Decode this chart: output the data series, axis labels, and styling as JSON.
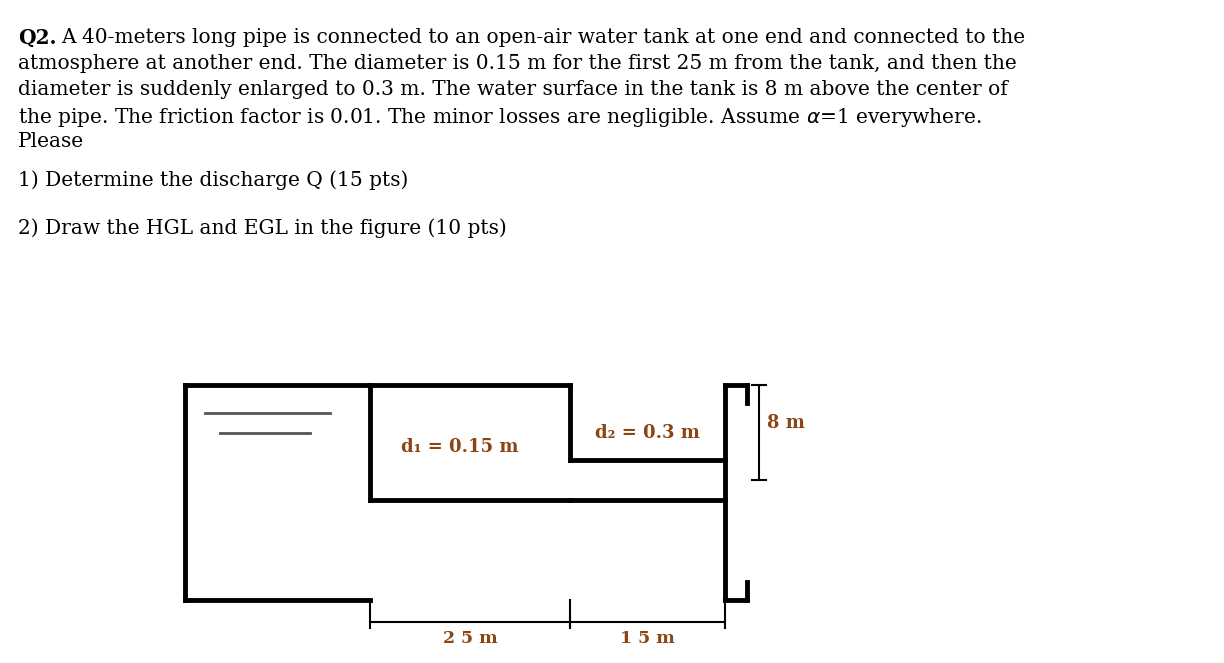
{
  "line1": "Q2. A 40-meters long pipe is connected to an open-air water tank at one end and connected to the",
  "line2": "atmosphere at another end. The diameter is 0.15 m for the first 25 m from the tank, and then the",
  "line3": "diameter is suddenly enlarged to 0.3 m. The water surface in the tank is 8 m above the center of",
  "line4": "the pipe. The friction factor is 0.01. The minor losses are negligible. Assume α=1 everywhere.",
  "line5": "Please",
  "item1": "1) Determine the discharge Q (15 pts)",
  "item2": "2) Draw the HGL and EGL in the figure (10 pts)",
  "label_d1": "d₁ = 0.15 m",
  "label_d2": "d₂ = 0.3 m",
  "label_25m": "2 5 m",
  "label_15m": "1 5 m",
  "label_8m": "8 m",
  "line_color": "#000000",
  "label_color": "#8B4513",
  "bg_color": "#ffffff",
  "fig_width": 12.24,
  "fig_height": 6.63,
  "dpi": 100
}
